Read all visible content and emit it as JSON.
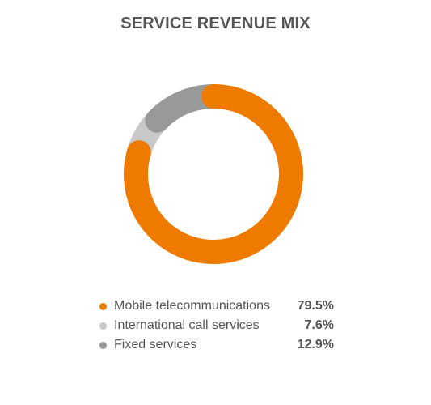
{
  "chart_data": {
    "type": "pie",
    "title": "SERVICE REVENUE MIX",
    "categories": [
      "Mobile telecommunications",
      "International call services",
      "Fixed services"
    ],
    "values": [
      79.5,
      7.6,
      12.9
    ],
    "value_labels": [
      "79.5%",
      "7.6%",
      "12.9%"
    ],
    "colors": [
      "#ee7a00",
      "#c8c8c8",
      "#999999"
    ],
    "donut": true,
    "start_angle_deg": 0,
    "direction": "clockwise",
    "legend_position": "bottom"
  }
}
